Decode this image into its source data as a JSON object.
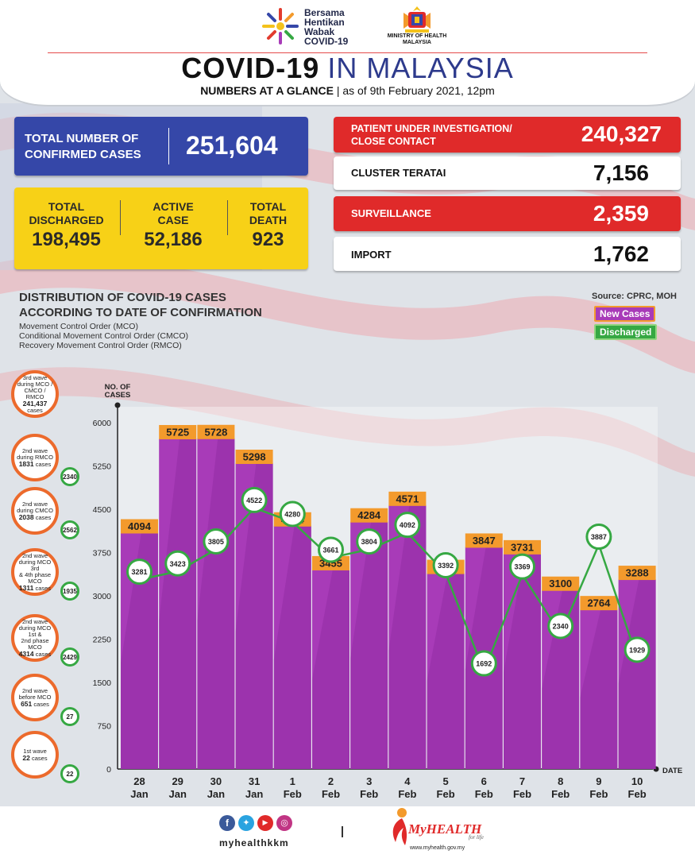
{
  "header": {
    "campaign_line1": "Bersama",
    "campaign_line2": "Hentikan",
    "campaign_line3": "Wabak",
    "campaign_line4": "COVID-19",
    "ministry_line1": "MINISTRY OF HEALTH",
    "ministry_line2": "MALAYSIA",
    "title_part1": "COVID-19",
    "title_part2": "IN MALAYSIA",
    "subtitle_bold": "NUMBERS AT A GLANCE",
    "subtitle_date": "as of 9th February 2021, 12pm"
  },
  "stats": {
    "confirmed_label_1": "TOTAL NUMBER OF",
    "confirmed_label_2": "CONFIRMED CASES",
    "confirmed_value": "251,604",
    "discharged_label_1": "TOTAL",
    "discharged_label_2": "DISCHARGED",
    "discharged_value": "198,495",
    "active_label_1": "ACTIVE",
    "active_label_2": "CASE",
    "active_value": "52,186",
    "death_label_1": "TOTAL",
    "death_label_2": "DEATH",
    "death_value": "923",
    "pui_label_1": "PATIENT UNDER INVESTIGATION/",
    "pui_label_2": "CLOSE CONTACT",
    "pui_value": "240,327",
    "cluster_label": "CLUSTER TERATAI",
    "cluster_value": "7,156",
    "surveillance_label": "SURVEILLANCE",
    "surveillance_value": "2,359",
    "import_label": "IMPORT",
    "import_value": "1,762"
  },
  "chart_section": {
    "title_line1": "DISTRIBUTION OF COVID-19 CASES",
    "title_line2": "ACCORDING TO DATE OF CONFIRMATION",
    "note_1": "Movement Control Order (MCO)",
    "note_2": "Conditional Movement Control Order (CMCO)",
    "note_3": "Recovery Movement Control Order (RMCO)",
    "source": "Source: CPRC, MOH"
  },
  "waves": [
    {
      "line1": "3rd wave",
      "line2": "during MCO /",
      "line3": "CMCO / RMCO",
      "count": "241,437",
      "unit": "cases",
      "badge": ""
    },
    {
      "line1": "2nd wave",
      "line2": "during RMCO",
      "line3": "",
      "count": "1831",
      "unit": "cases",
      "badge": "2340"
    },
    {
      "line1": "2nd wave",
      "line2": "during CMCO",
      "line3": "",
      "count": "2038",
      "unit": "cases",
      "badge": "2562"
    },
    {
      "line1": "2nd wave",
      "line2": "during MCO 3rd",
      "line3": "& 4th phase MCO",
      "count": "1311",
      "unit": "cases",
      "badge": "1935"
    },
    {
      "line1": "2nd wave",
      "line2": "during MCO 1st &",
      "line3": "2nd phase MCO",
      "count": "4314",
      "unit": "cases",
      "badge": "2429"
    },
    {
      "line1": "2nd wave",
      "line2": "before MCO",
      "line3": "",
      "count": "651",
      "unit": "cases",
      "badge": "27"
    },
    {
      "line1": "1st wave",
      "line2": "",
      "line3": "",
      "count": "22",
      "unit": "cases",
      "badge": "22"
    }
  ],
  "footer": {
    "handle": "myhealthkkm",
    "brand": "MyHEALTH",
    "tagline": "for life",
    "url": "www.myhealth.gov.my"
  },
  "chart_data": {
    "type": "bar",
    "title": "DISTRIBUTION OF COVID-19 CASES ACCORDING TO DATE OF CONFIRMATION",
    "ylabel": "NO. OF CASES",
    "xlabel": "DATE",
    "ylim": [
      0,
      6000
    ],
    "yticks": [
      0,
      750,
      1500,
      2250,
      3000,
      3750,
      4500,
      5250,
      6000
    ],
    "categories": [
      {
        "day": "28",
        "month": "Jan"
      },
      {
        "day": "29",
        "month": "Jan"
      },
      {
        "day": "30",
        "month": "Jan"
      },
      {
        "day": "31",
        "month": "Jan"
      },
      {
        "day": "1",
        "month": "Feb"
      },
      {
        "day": "2",
        "month": "Feb"
      },
      {
        "day": "3",
        "month": "Feb"
      },
      {
        "day": "4",
        "month": "Feb"
      },
      {
        "day": "5",
        "month": "Feb"
      },
      {
        "day": "6",
        "month": "Feb"
      },
      {
        "day": "7",
        "month": "Feb"
      },
      {
        "day": "8",
        "month": "Feb"
      },
      {
        "day": "9",
        "month": "Feb"
      },
      {
        "day": "10",
        "month": "Feb"
      }
    ],
    "series": [
      {
        "name": "New Cases",
        "kind": "bar",
        "color": "#a83bb8",
        "values": [
          4094,
          5725,
          5728,
          5298,
          4214,
          3455,
          4284,
          4571,
          3391,
          3847,
          3731,
          3100,
          2764,
          3288
        ]
      },
      {
        "name": "Discharged",
        "kind": "line",
        "color": "#36a843",
        "values": [
          3281,
          3423,
          3805,
          4522,
          4280,
          3661,
          3804,
          4092,
          3392,
          1692,
          3369,
          2340,
          3887,
          1929
        ]
      }
    ],
    "legend": "top-right"
  },
  "colors": {
    "bar": "#a83bb8",
    "bar_label_bg": "#f39a2c",
    "line": "#36a843",
    "blue": "#3547a8",
    "yellow": "#f7d117",
    "red": "#e02a2a"
  }
}
